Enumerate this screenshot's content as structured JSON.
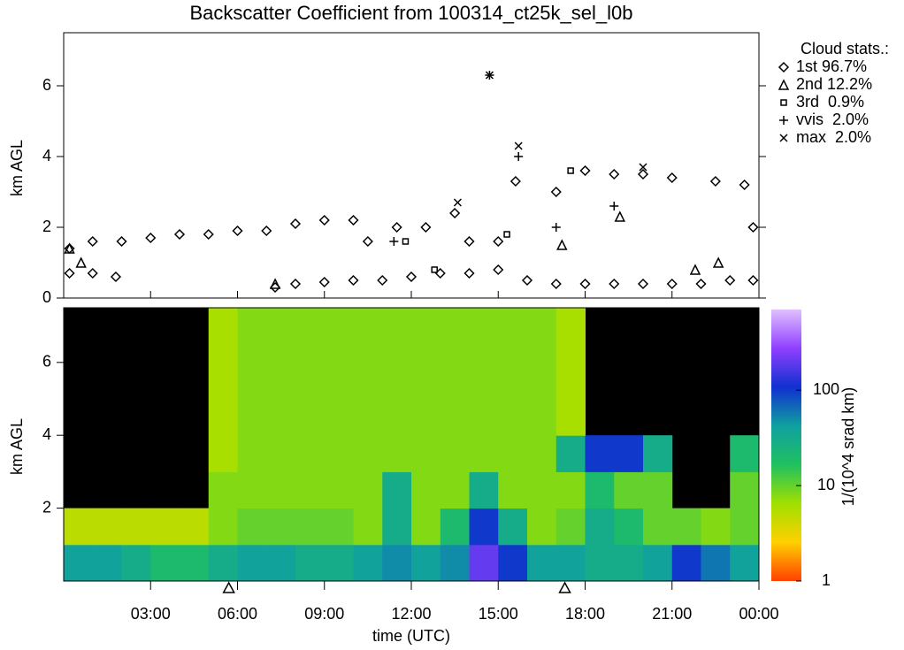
{
  "chart_data": [
    {
      "type": "scatter",
      "title": "Backscatter Coefficient from 100314_ct25k_sel_l0b",
      "ylabel": "km AGL",
      "xlim": [
        0,
        24
      ],
      "ylim": [
        0,
        7.5
      ],
      "yticks": [
        0,
        2,
        4,
        6
      ],
      "legend_title": "Cloud stats.:",
      "legend": "upper right",
      "series": [
        {
          "name": "1st 96.7%",
          "symbol": "diamond",
          "color": "#000000",
          "x": [
            0.2,
            1,
            1.8,
            7.3,
            8,
            9,
            10,
            11,
            12,
            13,
            14,
            15,
            16,
            17,
            18,
            19,
            20,
            21,
            22,
            23,
            23.8,
            0.2,
            1,
            2,
            3,
            4,
            5,
            6,
            7,
            8,
            9,
            10,
            10.5,
            11.5,
            12.5,
            13.5,
            14,
            15,
            15.6,
            17,
            18,
            19,
            20,
            21,
            22.5,
            23.5,
            23.8
          ],
          "y": [
            0.7,
            0.7,
            0.6,
            0.3,
            0.4,
            0.45,
            0.5,
            0.5,
            0.6,
            0.7,
            0.7,
            0.8,
            0.5,
            0.4,
            0.4,
            0.4,
            0.4,
            0.4,
            0.4,
            0.5,
            0.5,
            1.4,
            1.6,
            1.6,
            1.7,
            1.8,
            1.8,
            1.9,
            1.9,
            2.1,
            2.2,
            2.2,
            1.6,
            2.0,
            2.0,
            2.4,
            1.6,
            1.6,
            3.3,
            3.0,
            3.6,
            3.5,
            3.5,
            3.4,
            3.3,
            3.2,
            2.0
          ]
        },
        {
          "name": "2nd 12.2%",
          "symbol": "triangle",
          "color": "#000000",
          "x": [
            0.2,
            0.6,
            7.3,
            17.2,
            19.2,
            21.8,
            22.6
          ],
          "y": [
            1.4,
            1.0,
            0.4,
            1.5,
            2.3,
            0.8,
            1.0
          ]
        },
        {
          "name": "3rd  0.9%",
          "symbol": "square",
          "color": "#000000",
          "x": [
            11.8,
            12.8,
            15.3,
            17.5
          ],
          "y": [
            1.6,
            0.8,
            1.8,
            3.6
          ]
        },
        {
          "name": "vvis  2.0%",
          "symbol": "plus",
          "color": "#000000",
          "x": [
            11.4,
            15.7,
            14.7,
            17,
            19
          ],
          "y": [
            1.6,
            4.0,
            6.3,
            2.0,
            2.6
          ]
        },
        {
          "name": "max  2.0%",
          "symbol": "x",
          "color": "#000000",
          "x": [
            15.7,
            14.7,
            13.6,
            20
          ],
          "y": [
            4.3,
            6.3,
            2.7,
            3.7
          ]
        }
      ]
    },
    {
      "type": "heatmap",
      "ylabel": "km AGL",
      "xlabel": "time (UTC)",
      "xlim": [
        0,
        24
      ],
      "ylim": [
        0,
        7.5
      ],
      "yticks": [
        2,
        4,
        6
      ],
      "xticks": [
        {
          "value": 3,
          "label": "03:00"
        },
        {
          "value": 6,
          "label": "06:00"
        },
        {
          "value": 9,
          "label": "09:00"
        },
        {
          "value": 12,
          "label": "12:00"
        },
        {
          "value": 15,
          "label": "15:00"
        },
        {
          "value": 18,
          "label": "18:00"
        },
        {
          "value": 21,
          "label": "21:00"
        },
        {
          "value": 24,
          "label": "00:00"
        }
      ],
      "markers_x": [
        5.7,
        17.3
      ],
      "xbins": [
        0,
        1,
        2,
        3,
        4,
        5,
        6,
        7,
        8,
        9,
        10,
        11,
        12,
        13,
        14,
        15,
        16,
        17,
        18,
        19,
        20,
        21,
        22,
        23,
        24
      ],
      "ybins": [
        0,
        1,
        2,
        3,
        4,
        5,
        6,
        7,
        8
      ],
      "z": [
        [
          40,
          40,
          30,
          20,
          20,
          30,
          40,
          40,
          30,
          30,
          40,
          50,
          40,
          50,
          200,
          100,
          40,
          40,
          30,
          30,
          40,
          100,
          60,
          40
        ],
        [
          5,
          5,
          5,
          5,
          5,
          8,
          10,
          10,
          10,
          10,
          8,
          30,
          8,
          20,
          100,
          30,
          8,
          10,
          30,
          20,
          10,
          10,
          8,
          10
        ],
        [
          null,
          null,
          null,
          null,
          null,
          8,
          8,
          8,
          8,
          8,
          8,
          30,
          8,
          8,
          30,
          8,
          8,
          8,
          20,
          10,
          10,
          null,
          null,
          10
        ],
        [
          null,
          null,
          null,
          null,
          null,
          6,
          8,
          8,
          8,
          8,
          8,
          8,
          8,
          8,
          8,
          8,
          8,
          30,
          100,
          100,
          30,
          null,
          null,
          20
        ],
        [
          null,
          null,
          null,
          null,
          null,
          6,
          8,
          8,
          8,
          8,
          8,
          8,
          8,
          8,
          8,
          8,
          8,
          6,
          null,
          null,
          null,
          null,
          null,
          null
        ],
        [
          null,
          null,
          null,
          null,
          null,
          6,
          8,
          8,
          8,
          8,
          8,
          8,
          8,
          8,
          8,
          8,
          8,
          6,
          null,
          null,
          null,
          null,
          null,
          null
        ],
        [
          null,
          null,
          null,
          null,
          null,
          6,
          8,
          8,
          8,
          8,
          8,
          8,
          8,
          8,
          8,
          8,
          8,
          6,
          null,
          null,
          null,
          null,
          null,
          null
        ],
        [
          null,
          null,
          null,
          null,
          null,
          6,
          8,
          8,
          8,
          8,
          8,
          8,
          8,
          8,
          8,
          8,
          8,
          6,
          null,
          null,
          null,
          null,
          null,
          null
        ]
      ],
      "colorbar_label": "1/(10^4 srad km)",
      "clim": [
        1,
        700
      ],
      "log_color": true,
      "cticks": [
        1,
        10,
        100
      ],
      "colormap": [
        "#ff4000",
        "#ffd000",
        "#a0e000",
        "#20c060",
        "#10a0a0",
        "#1030d0",
        "#9040ff",
        "#e0c0ff"
      ],
      "background": "#000000"
    }
  ]
}
